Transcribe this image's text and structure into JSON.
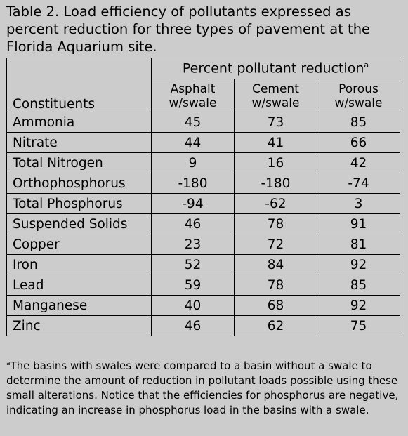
{
  "caption": "Table 2.  Load efficiency of pollutants expressed as percent reduction for three types of pavement at the Florida Aquarium site.",
  "table": {
    "group_header": "Percent pollutant reduction",
    "group_header_mark": "a",
    "row_header": "Constituents",
    "columns": [
      {
        "line1": "Asphalt",
        "line2": "w/swale"
      },
      {
        "line1": "Cement",
        "line2": "w/swale"
      },
      {
        "line1": "Porous",
        "line2": "w/swale"
      }
    ],
    "rows": [
      {
        "name": "Ammonia",
        "values": [
          "45",
          "73",
          "85"
        ]
      },
      {
        "name": "Nitrate",
        "values": [
          "44",
          "41",
          "66"
        ]
      },
      {
        "name": "Total Nitrogen",
        "values": [
          "9",
          "16",
          "42"
        ]
      },
      {
        "name": "Orthophosphorus",
        "values": [
          "-180",
          "-180",
          "-74"
        ]
      },
      {
        "name": "Total Phosphorus",
        "values": [
          "-94",
          "-62",
          "3"
        ]
      },
      {
        "name": "Suspended Solids",
        "values": [
          "46",
          "78",
          "91"
        ]
      },
      {
        "name": "Copper",
        "values": [
          "23",
          "72",
          "81"
        ]
      },
      {
        "name": "Iron",
        "values": [
          "52",
          "84",
          "92"
        ]
      },
      {
        "name": "Lead",
        "values": [
          "59",
          "78",
          "85"
        ]
      },
      {
        "name": "Manganese",
        "values": [
          "40",
          "68",
          "92"
        ]
      },
      {
        "name": "Zinc",
        "values": [
          "46",
          "62",
          "75"
        ]
      }
    ]
  },
  "footnote": {
    "mark": "a",
    "text": "The basins with swales were compared to a basin without a swale to determine the amount of reduction in pollutant loads possible using these small alterations.  Notice that the efficiencies for phosphorus are negative, indicating an increase in phosphorus load in the basins with a swale."
  }
}
